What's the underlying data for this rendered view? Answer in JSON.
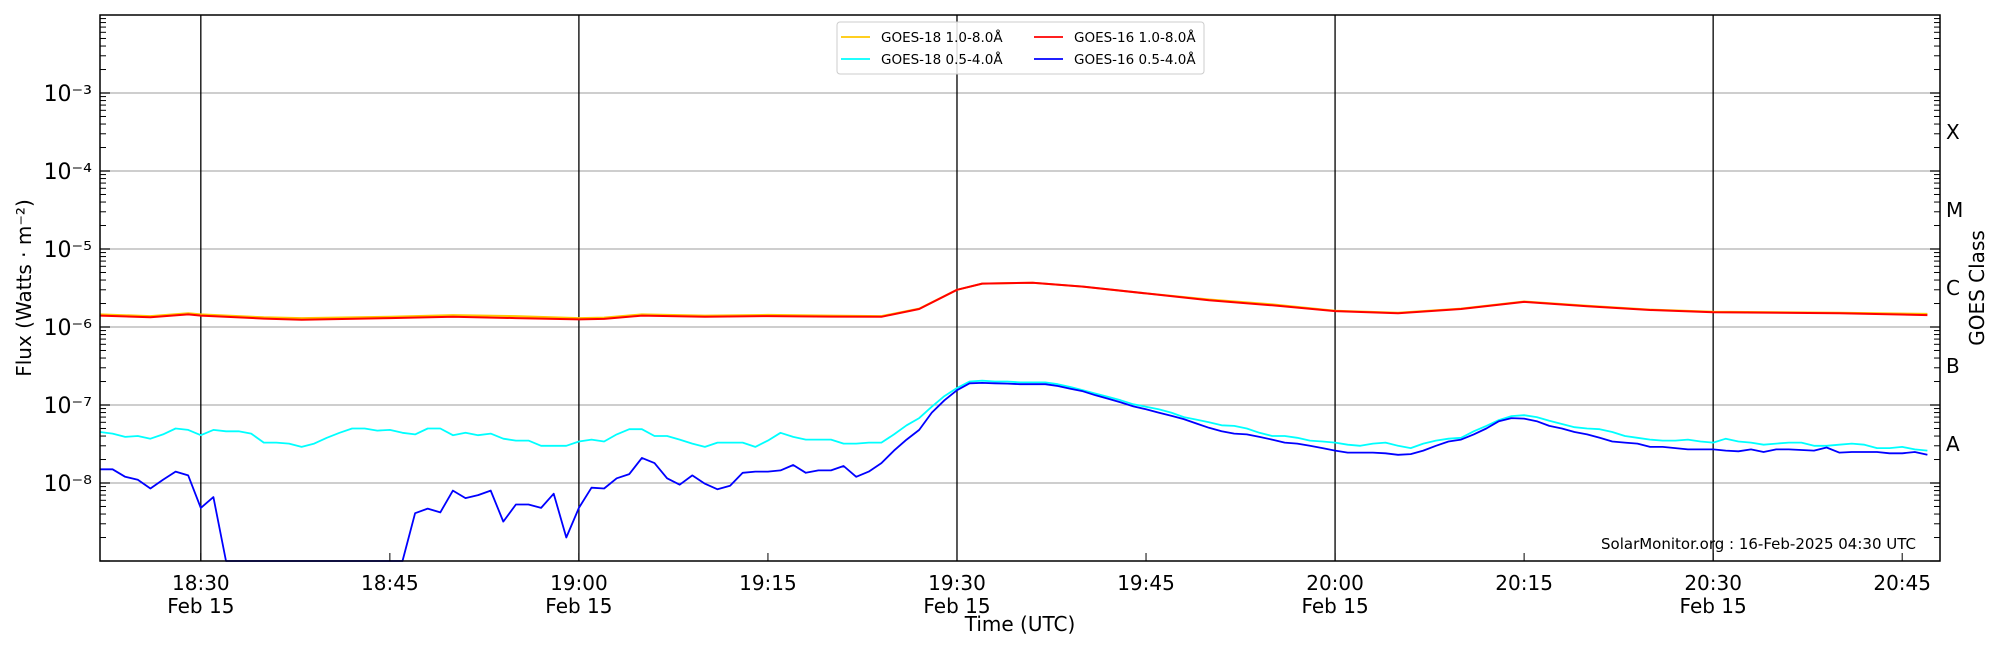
{
  "chart_data": {
    "type": "line",
    "title": "",
    "xlabel": "Time (UTC)",
    "ylabel": "Flux (Watts · m⁻²)",
    "y2label": "GOES Class",
    "yscale": "log",
    "ylim": [
      1e-09,
      0.01
    ],
    "xlim": [
      "18:22",
      "20:48"
    ],
    "grid": "horizontal at decades",
    "legend_position": "top-center",
    "yticks": [
      {
        "value": 0.001,
        "label": "10⁻³"
      },
      {
        "value": 0.0001,
        "label": "10⁻⁴"
      },
      {
        "value": 1e-05,
        "label": "10⁻⁵"
      },
      {
        "value": 1e-06,
        "label": "10⁻⁶"
      },
      {
        "value": 1e-07,
        "label": "10⁻⁷"
      },
      {
        "value": 1e-08,
        "label": "10⁻⁸"
      }
    ],
    "xticks": [
      {
        "time": "18:30",
        "label": "18:30",
        "date": "Feb 15"
      },
      {
        "time": "18:45",
        "label": "18:45",
        "date": ""
      },
      {
        "time": "19:00",
        "label": "19:00",
        "date": "Feb 15"
      },
      {
        "time": "19:15",
        "label": "19:15",
        "date": ""
      },
      {
        "time": "19:30",
        "label": "19:30",
        "date": "Feb 15"
      },
      {
        "time": "19:45",
        "label": "19:45",
        "date": ""
      },
      {
        "time": "20:00",
        "label": "20:00",
        "date": "Feb 15"
      },
      {
        "time": "20:15",
        "label": "20:15",
        "date": ""
      },
      {
        "time": "20:30",
        "label": "20:30",
        "date": "Feb 15"
      },
      {
        "time": "20:45",
        "label": "20:45",
        "date": ""
      }
    ],
    "vlines": [
      "18:30",
      "19:00",
      "19:30",
      "20:00",
      "20:30"
    ],
    "goes_classes": [
      {
        "label": "A",
        "value": 3.16e-08
      },
      {
        "label": "B",
        "value": 3.16e-07
      },
      {
        "label": "C",
        "value": 3.16e-06
      },
      {
        "label": "M",
        "value": 3.16e-05
      },
      {
        "label": "X",
        "value": 0.000316
      }
    ],
    "series": [
      {
        "name": "GOES-18 1.0-8.0Å",
        "color": "#ffc800",
        "times": [
          "18:22",
          "18:26",
          "18:29",
          "18:30",
          "18:35",
          "18:38",
          "18:45",
          "18:50",
          "18:55",
          "19:00",
          "19:02",
          "19:05",
          "19:10",
          "19:15",
          "19:20",
          "19:24",
          "19:27",
          "19:30",
          "19:32",
          "19:36",
          "19:40",
          "19:45",
          "19:50",
          "19:55",
          "20:00",
          "20:05",
          "20:10",
          "20:15",
          "20:20",
          "20:25",
          "20:30",
          "20:40",
          "20:47"
        ],
        "values": [
          1.45e-06,
          1.38e-06,
          1.5e-06,
          1.45e-06,
          1.33e-06,
          1.3e-06,
          1.35e-06,
          1.42e-06,
          1.38e-06,
          1.3e-06,
          1.32e-06,
          1.45e-06,
          1.4e-06,
          1.43e-06,
          1.4e-06,
          1.38e-06,
          1.72e-06,
          3e-06,
          3.6e-06,
          3.7e-06,
          3.3e-06,
          2.7e-06,
          2.25e-06,
          1.95e-06,
          1.62e-06,
          1.52e-06,
          1.72e-06,
          2.12e-06,
          1.87e-06,
          1.67e-06,
          1.57e-06,
          1.52e-06,
          1.47e-06
        ]
      },
      {
        "name": "GOES-16 1.0-8.0Å",
        "color": "#ff0000",
        "times": [
          "18:22",
          "18:26",
          "18:29",
          "18:30",
          "18:35",
          "18:38",
          "18:45",
          "18:50",
          "18:55",
          "19:00",
          "19:02",
          "19:05",
          "19:10",
          "19:15",
          "19:20",
          "19:24",
          "19:27",
          "19:30",
          "19:32",
          "19:36",
          "19:40",
          "19:45",
          "19:50",
          "19:55",
          "20:00",
          "20:05",
          "20:10",
          "20:15",
          "20:20",
          "20:25",
          "20:30",
          "20:40",
          "20:47"
        ],
        "values": [
          1.4e-06,
          1.33e-06,
          1.45e-06,
          1.4e-06,
          1.28e-06,
          1.24e-06,
          1.3e-06,
          1.35e-06,
          1.3e-06,
          1.25e-06,
          1.27e-06,
          1.4e-06,
          1.35e-06,
          1.38e-06,
          1.36e-06,
          1.35e-06,
          1.7e-06,
          3e-06,
          3.6e-06,
          3.7e-06,
          3.3e-06,
          2.7e-06,
          2.2e-06,
          1.9e-06,
          1.6e-06,
          1.5e-06,
          1.7e-06,
          2.1e-06,
          1.85e-06,
          1.65e-06,
          1.55e-06,
          1.5e-06,
          1.42e-06
        ]
      },
      {
        "name": "GOES-18 0.5-4.0Å",
        "color": "#00ffff",
        "start": "18:22",
        "cadence_min": 1,
        "values": [
          4.5e-08,
          4.3e-08,
          3.9e-08,
          4e-08,
          3.7e-08,
          4.2e-08,
          5e-08,
          4.8e-08,
          4.1e-08,
          4.8e-08,
          4.6e-08,
          4.6e-08,
          4.3e-08,
          3.3e-08,
          3.3e-08,
          3.2e-08,
          2.9e-08,
          3.2e-08,
          3.8e-08,
          4.4e-08,
          5e-08,
          5e-08,
          4.7e-08,
          4.8e-08,
          4.4e-08,
          4.2e-08,
          5e-08,
          5e-08,
          4.1e-08,
          4.4e-08,
          4.1e-08,
          4.3e-08,
          3.7e-08,
          3.5e-08,
          3.5e-08,
          3e-08,
          3e-08,
          3e-08,
          3.4e-08,
          3.6e-08,
          3.4e-08,
          4.2e-08,
          4.9e-08,
          4.9e-08,
          4e-08,
          4e-08,
          3.6e-08,
          3.2e-08,
          2.9e-08,
          3.3e-08,
          3.3e-08,
          3.3e-08,
          2.9e-08,
          3.5e-08,
          4.4e-08,
          3.9e-08,
          3.6e-08,
          3.6e-08,
          3.6e-08,
          3.2e-08,
          3.2e-08,
          3.3e-08,
          3.3e-08,
          4.2e-08,
          5.5e-08,
          6.8e-08,
          9.5e-08,
          1.3e-07,
          1.65e-07,
          2e-07,
          2.05e-07,
          2e-07,
          2e-07,
          1.95e-07,
          1.95e-07,
          1.95e-07,
          1.85e-07,
          1.7e-07,
          1.55e-07,
          1.4e-07,
          1.27e-07,
          1.15e-07,
          1.02e-07,
          9.5e-08,
          8.8e-08,
          8e-08,
          7e-08,
          6.5e-08,
          6e-08,
          5.5e-08,
          5.4e-08,
          5e-08,
          4.4e-08,
          4e-08,
          4e-08,
          3.8e-08,
          3.5e-08,
          3.4e-08,
          3.3e-08,
          3.1e-08,
          3e-08,
          3.2e-08,
          3.3e-08,
          3e-08,
          2.8e-08,
          3.2e-08,
          3.5e-08,
          3.7e-08,
          3.8e-08,
          4.6e-08,
          5.4e-08,
          6.4e-08,
          7.2e-08,
          7.4e-08,
          7e-08,
          6.3e-08,
          5.7e-08,
          5.2e-08,
          5e-08,
          4.9e-08,
          4.5e-08,
          4e-08,
          3.8e-08,
          3.6e-08,
          3.5e-08,
          3.5e-08,
          3.6e-08,
          3.4e-08,
          3.3e-08,
          3.7e-08,
          3.4e-08,
          3.3e-08,
          3.1e-08,
          3.2e-08,
          3.3e-08,
          3.3e-08,
          3e-08,
          3e-08,
          3.1e-08,
          3.2e-08,
          3.1e-08,
          2.8e-08,
          2.8e-08,
          2.9e-08,
          2.7e-08,
          2.6e-08
        ]
      },
      {
        "name": "GOES-16 0.5-4.0Å",
        "color": "#0000ff",
        "start": "18:22",
        "cadence_min": 1,
        "values": [
          1.5e-08,
          1.5e-08,
          1.2e-08,
          1.1e-08,
          8.5e-09,
          1.1e-08,
          1.4e-08,
          1.25e-08,
          4.8e-09,
          6.6e-09,
          1e-09,
          1e-09,
          1e-09,
          1e-09,
          1e-09,
          1e-09,
          1e-09,
          1e-09,
          1e-09,
          1e-09,
          1e-09,
          1e-09,
          1e-09,
          1e-09,
          1e-09,
          4.1e-09,
          4.7e-09,
          4.2e-09,
          8e-09,
          6.4e-09,
          7e-09,
          8e-09,
          3.2e-09,
          5.3e-09,
          5.3e-09,
          4.8e-09,
          7.3e-09,
          2e-09,
          4.8e-09,
          8.7e-09,
          8.5e-09,
          1.15e-08,
          1.3e-08,
          2.1e-08,
          1.8e-08,
          1.15e-08,
          9.5e-09,
          1.25e-08,
          9.8e-09,
          8.3e-09,
          9.2e-09,
          1.35e-08,
          1.4e-08,
          1.4e-08,
          1.45e-08,
          1.7e-08,
          1.35e-08,
          1.45e-08,
          1.45e-08,
          1.65e-08,
          1.2e-08,
          1.4e-08,
          1.8e-08,
          2.6e-08,
          3.6e-08,
          4.8e-08,
          8e-08,
          1.15e-07,
          1.55e-07,
          1.9e-07,
          1.92e-07,
          1.9e-07,
          1.88e-07,
          1.85e-07,
          1.85e-07,
          1.85e-07,
          1.75e-07,
          1.62e-07,
          1.5e-07,
          1.33e-07,
          1.2e-07,
          1.08e-07,
          9.6e-08,
          8.8e-08,
          8e-08,
          7.3e-08,
          6.6e-08,
          5.8e-08,
          5.1e-08,
          4.6e-08,
          4.3e-08,
          4.2e-08,
          3.9e-08,
          3.6e-08,
          3.3e-08,
          3.2e-08,
          3e-08,
          2.8e-08,
          2.6e-08,
          2.45e-08,
          2.45e-08,
          2.45e-08,
          2.4e-08,
          2.3e-08,
          2.35e-08,
          2.6e-08,
          3e-08,
          3.4e-08,
          3.6e-08,
          4.2e-08,
          5e-08,
          6.2e-08,
          6.8e-08,
          6.7e-08,
          6.2e-08,
          5.4e-08,
          5e-08,
          4.5e-08,
          4.2e-08,
          3.8e-08,
          3.4e-08,
          3.3e-08,
          3.2e-08,
          2.9e-08,
          2.9e-08,
          2.8e-08,
          2.7e-08,
          2.7e-08,
          2.7e-08,
          2.6e-08,
          2.55e-08,
          2.7e-08,
          2.5e-08,
          2.7e-08,
          2.7e-08,
          2.65e-08,
          2.6e-08,
          2.85e-08,
          2.45e-08,
          2.5e-08,
          2.5e-08,
          2.5e-08,
          2.4e-08,
          2.4e-08,
          2.5e-08,
          2.3e-08
        ]
      }
    ],
    "legend_order": [
      0,
      2,
      1,
      3
    ],
    "annotation": "SolarMonitor.org : 16-Feb-2025 04:30 UTC"
  }
}
